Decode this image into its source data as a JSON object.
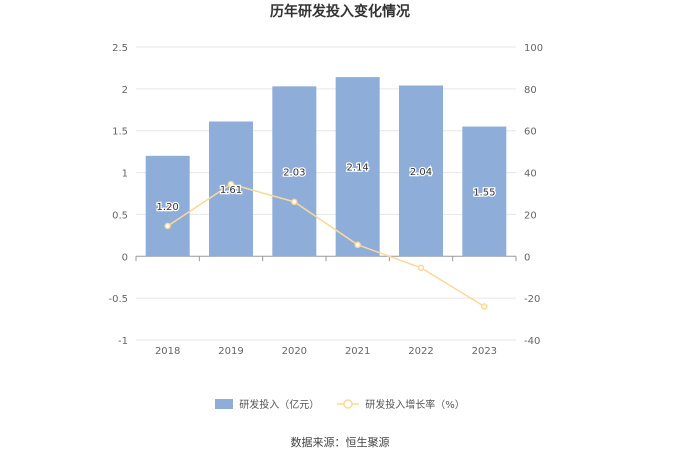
{
  "chart_data": {
    "type": "bar+line",
    "title": "历年研发投入变化情况",
    "categories": [
      "2018",
      "2019",
      "2020",
      "2021",
      "2022",
      "2023"
    ],
    "series": [
      {
        "name": "研发投入（亿元）",
        "type": "bar",
        "axis": "left",
        "values": [
          1.2,
          1.61,
          2.03,
          2.14,
          2.04,
          1.55
        ],
        "labels": [
          "1.20",
          "1.61",
          "2.03",
          "2.14",
          "2.04",
          "1.55"
        ],
        "color": "#8eadd9"
      },
      {
        "name": "研发投入增长率（%）",
        "type": "line",
        "axis": "right",
        "values": [
          14.5,
          34.5,
          26.0,
          5.5,
          -5.5,
          -24.0
        ],
        "color": "#fbd89a"
      }
    ],
    "y_left": {
      "min": -1,
      "max": 2.5,
      "ticks": [
        "2.5",
        "2",
        "1.5",
        "1",
        "0.5",
        "0",
        "-0.5",
        "-1"
      ]
    },
    "y_right": {
      "min": -40,
      "max": 100,
      "ticks": [
        "100",
        "80",
        "60",
        "40",
        "20",
        "0",
        "-20",
        "-40"
      ]
    },
    "grid": true,
    "legend_position": "bottom"
  },
  "source_text": "数据来源：恒生聚源"
}
